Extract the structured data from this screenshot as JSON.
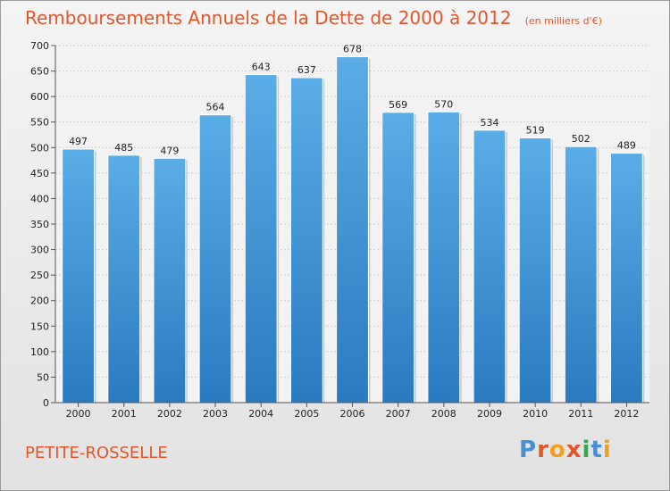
{
  "chart_data": {
    "type": "bar",
    "title": "Remboursements Annuels de la Dette de 2000 à 2012",
    "subtitle": "(en milliers d'€)",
    "categories": [
      "2000",
      "2001",
      "2002",
      "2003",
      "2004",
      "2005",
      "2006",
      "2007",
      "2008",
      "2009",
      "2010",
      "2011",
      "2012"
    ],
    "values": [
      497,
      485,
      479,
      564,
      643,
      637,
      678,
      569,
      570,
      534,
      519,
      502,
      489
    ],
    "data_labels": [
      "497",
      "485",
      "479",
      "564",
      "643",
      "637",
      "678",
      "569",
      "570",
      "534",
      "519",
      "502",
      "489"
    ],
    "ylim": [
      0,
      700
    ],
    "yticks": [
      0,
      50,
      100,
      150,
      200,
      250,
      300,
      350,
      400,
      450,
      500,
      550,
      600,
      650,
      700
    ],
    "ytick_labels": [
      "0",
      "50",
      "100",
      "150",
      "200",
      "250",
      "300",
      "350",
      "400",
      "450",
      "500",
      "550",
      "600",
      "650",
      "700"
    ],
    "grid": true,
    "legend": "none",
    "bar_color_top": "#5aade6",
    "bar_color_bottom": "#2a7ac0",
    "title_color": "#e2562c"
  },
  "footer": {
    "commune": "PETITE-ROSSELLE",
    "brand": "Proxiti",
    "brand_colors": [
      "#4a90d0",
      "#e2562c",
      "#f0a020",
      "#e2562c",
      "#38a848",
      "#4a90d0",
      "#f0a020"
    ]
  }
}
